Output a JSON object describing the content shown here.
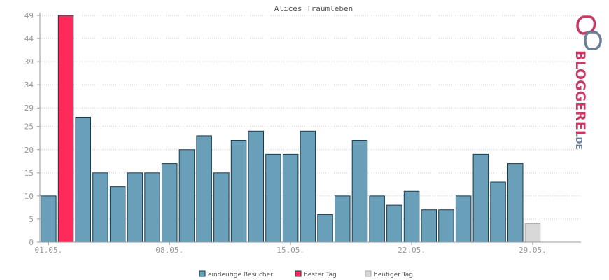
{
  "chart_data": {
    "type": "bar",
    "title": "Alices Traumleben",
    "xlabel": "",
    "ylabel": "",
    "ylim": [
      0,
      49
    ],
    "y_ticks": [
      "0",
      "5",
      "10",
      "15",
      "20",
      "25",
      "29",
      "34",
      "39",
      "44",
      "49"
    ],
    "x_tick_labels": [
      "01.05.",
      "08.05.",
      "15.05.",
      "22.05.",
      "29.05."
    ],
    "x_tick_day_index": [
      1,
      8,
      15,
      22,
      29
    ],
    "grid": true,
    "legend_position": "bottom-center",
    "colors": {
      "visitors": "#6a9fba",
      "best": "#ff2a5a",
      "today": "#d8d8d8",
      "bar_border": "#1a3a4a",
      "grid": "#cccccc",
      "axis": "#999999"
    },
    "series": [
      {
        "name": "eindeutige Besucher",
        "color": "#6a9fba",
        "days": [
          1,
          2,
          3,
          4,
          5,
          6,
          7,
          8,
          9,
          10,
          11,
          12,
          13,
          14,
          15,
          16,
          17,
          18,
          19,
          20,
          21,
          22,
          23,
          24,
          25,
          26,
          27,
          28,
          29
        ],
        "values": [
          10,
          49,
          27,
          15,
          12,
          15,
          15,
          17,
          20,
          23,
          15,
          22,
          24,
          19,
          19,
          24,
          6,
          10,
          22,
          10,
          8,
          11,
          7,
          7,
          10,
          19,
          13,
          17,
          4
        ]
      }
    ],
    "best_day_index": 1,
    "today_index": 28,
    "legend": [
      {
        "label": "eindeutige Besucher",
        "color": "#6a9fba"
      },
      {
        "label": "bester Tag",
        "color": "#ff2a5a"
      },
      {
        "label": "heutiger Tag",
        "color": "#d8d8d8"
      }
    ]
  },
  "logo": {
    "text": "BLOGGEREI",
    "suffix": ".DE",
    "colors": {
      "pink": "#c83a64",
      "gray": "#6a7f96"
    }
  }
}
